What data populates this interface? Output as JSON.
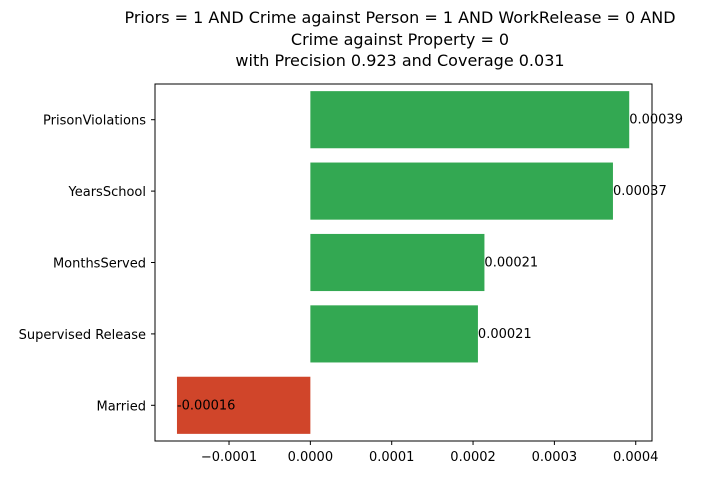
{
  "chart_data": {
    "type": "bar",
    "orientation": "horizontal",
    "title_lines": [
      "Priors = 1 AND Crime against Person = 1 AND WorkRelease = 0 AND",
      "Crime against Property = 0",
      "with Precision 0.923 and Coverage 0.031"
    ],
    "categories": [
      "PrisonViolations",
      "YearsSchool",
      "MonthsServed",
      "Supervised Release",
      "Married"
    ],
    "values": [
      0.000392,
      0.000372,
      0.000214,
      0.000206,
      -0.000164
    ],
    "value_labels": [
      "0.00039",
      "0.00037",
      "0.00021",
      "0.00021",
      "-0.00016"
    ],
    "xlim": [
      -0.000191,
      0.00042
    ],
    "xticks": [
      -0.0001,
      0.0,
      0.0001,
      0.0002,
      0.0003,
      0.0004
    ],
    "xtick_labels": [
      "−0.0001",
      "0.0000",
      "0.0001",
      "0.0002",
      "0.0003",
      "0.0004"
    ],
    "grid": false,
    "legend": "none",
    "colors": {
      "positive": "#33a852",
      "negative": "#d0452a"
    }
  }
}
